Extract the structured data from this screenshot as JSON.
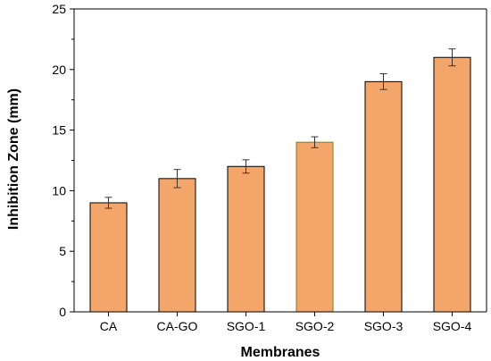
{
  "chart_data": {
    "type": "bar",
    "title": "",
    "xlabel": "Membranes",
    "ylabel": "Inhibition Zone (mm)",
    "categories": [
      "CA",
      "CA-GO",
      "SGO-1",
      "SGO-2",
      "SGO-3",
      "SGO-4"
    ],
    "values": [
      9,
      11,
      12,
      14,
      19,
      21
    ],
    "errors": [
      0.45,
      0.75,
      0.55,
      0.45,
      0.65,
      0.7
    ],
    "ylim": [
      0,
      25
    ],
    "yticks": [
      0,
      5,
      10,
      15,
      20,
      25
    ],
    "grid": false,
    "colors": {
      "bar_fill": "#f4a66a",
      "bar_stroke": "#000000",
      "highlight_stroke": "#8a7a1a",
      "error_bar": "#333333",
      "axis": "#000000"
    }
  }
}
